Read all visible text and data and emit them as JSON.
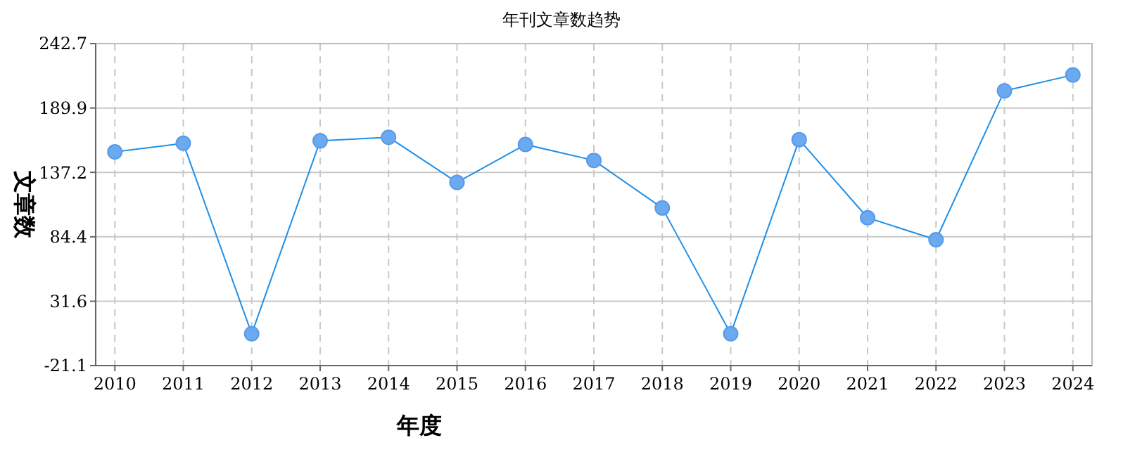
{
  "chart_data": {
    "type": "line",
    "title": "年刊文章数趋势",
    "xlabel": "年度",
    "ylabel": "文章数",
    "categories": [
      "2010",
      "2011",
      "2012",
      "2013",
      "2014",
      "2015",
      "2016",
      "2017",
      "2018",
      "2019",
      "2020",
      "2021",
      "2022",
      "2023",
      "2024"
    ],
    "series": [
      {
        "color": "#1e90e8",
        "values": [
          154,
          161,
          5,
          163,
          166,
          129,
          160,
          147,
          108,
          5,
          164,
          100,
          82,
          204,
          217
        ]
      }
    ],
    "ylim": [
      -21.1,
      242.7
    ],
    "yticks": [
      -21.1,
      31.6,
      84.4,
      137.2,
      189.9,
      242.7
    ],
    "grid": true,
    "marker": "circle",
    "line_style": "solid"
  }
}
